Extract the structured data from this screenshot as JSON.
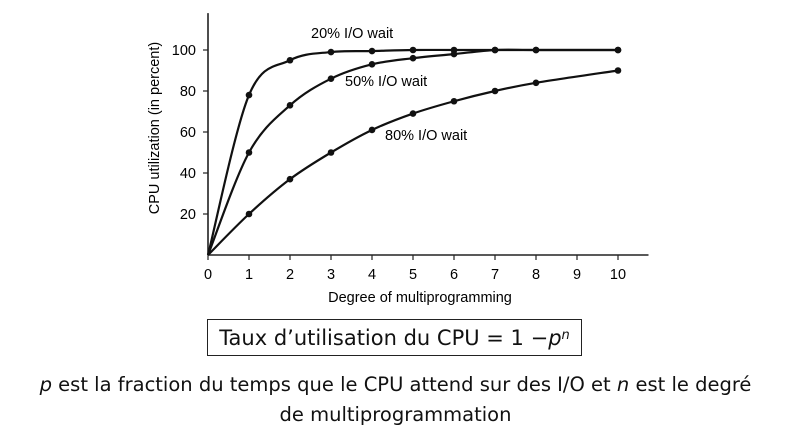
{
  "chart_data": {
    "type": "line",
    "xlabel": "Degree of multiprogramming",
    "ylabel": "CPU utilization (in percent)",
    "xlim": [
      0,
      10.5
    ],
    "ylim": [
      0,
      118
    ],
    "xticks": [
      "0",
      "1",
      "2",
      "3",
      "4",
      "5",
      "6",
      "7",
      "8",
      "9",
      "10"
    ],
    "yticks": [
      "20",
      "40",
      "60",
      "80",
      "100"
    ],
    "grid": false,
    "series": [
      {
        "name": "20% I/O wait",
        "x": [
          0,
          1,
          2,
          3,
          4,
          5,
          6,
          7,
          8,
          10
        ],
        "y": [
          0,
          78,
          95,
          99,
          99.5,
          100,
          100,
          100,
          100,
          100
        ]
      },
      {
        "name": "50% I/O wait",
        "x": [
          0,
          1,
          2,
          3,
          4,
          5,
          6,
          7,
          8,
          10
        ],
        "y": [
          0,
          50,
          73,
          86,
          93,
          96,
          98,
          100,
          100,
          100
        ]
      },
      {
        "name": "80% I/O wait",
        "x": [
          0,
          1,
          2,
          3,
          4,
          5,
          6,
          7,
          8,
          10
        ],
        "y": [
          0,
          20,
          37,
          50,
          61,
          69,
          75,
          80,
          84,
          90
        ]
      }
    ]
  },
  "formula": {
    "prefix": "Taux d’utilisation du CPU = 1 − ",
    "base": "p",
    "exponent": "n"
  },
  "caption": {
    "p_var": "p",
    "part1": " est la fraction du temps que le CPU attend sur des I/O et ",
    "n_var": "n",
    "part2": " est le degré",
    "line2": "de multiprogrammation"
  }
}
